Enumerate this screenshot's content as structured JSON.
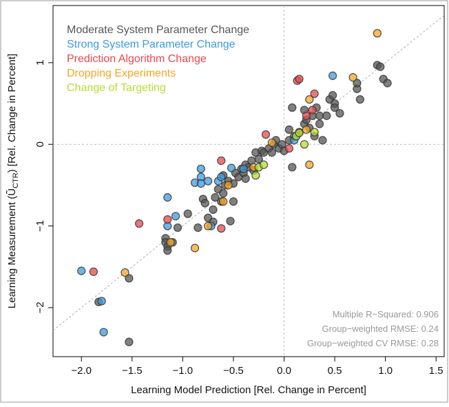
{
  "chart_data": {
    "type": "scatter",
    "x_label": "Learning Model Prediction  [Rel. Change in Percent]",
    "y_label": [
      "Learning Measurement  (Ũ",
      "CTR",
      ")  [Rel. Change in Percent]"
    ],
    "xlim": [
      -2.28,
      1.58
    ],
    "ylim": [
      -2.6,
      1.7
    ],
    "xticks": [
      {
        "value": -2.0,
        "label": "−2.0"
      },
      {
        "value": -1.5,
        "label": "−1.5"
      },
      {
        "value": -1.0,
        "label": "−1.0"
      },
      {
        "value": -0.5,
        "label": "−0.5"
      },
      {
        "value": 0,
        "label": "0.0"
      },
      {
        "value": 0.5,
        "label": "0.5"
      },
      {
        "value": 1.0,
        "label": "1.0"
      },
      {
        "value": 1.5,
        "label": "1.5"
      }
    ],
    "yticks": [
      {
        "value": -2,
        "label": "−2"
      },
      {
        "value": -1,
        "label": "−1"
      },
      0,
      1
    ],
    "legend": "top-left",
    "annotations": [
      "Multiple R−Squared: 0.906",
      "Group−weighted RMSE: 0.24",
      "Group−weighted CV RMSE: 0.28"
    ],
    "series": [
      {
        "name": "Moderate System Parameter Change",
        "color": "#555555",
        "x": [
          -1.83,
          -1.53,
          -1.53,
          -1.17,
          -1.17,
          -1.15,
          -1.15,
          -1.1,
          -1.05,
          -0.95,
          -0.8,
          -0.78,
          -0.75,
          -0.7,
          -0.68,
          -0.65,
          -0.62,
          -0.6,
          -0.58,
          -0.55,
          -0.53,
          -0.5,
          -0.5,
          -0.48,
          -0.45,
          -0.42,
          -0.4,
          -0.38,
          -0.35,
          -0.32,
          -0.3,
          -0.28,
          -0.25,
          -0.22,
          -0.2,
          -0.15,
          -0.12,
          -0.1,
          -0.08,
          -0.05,
          -0.02,
          0.0,
          0.05,
          0.08,
          0.1,
          0.15,
          0.2,
          0.2,
          0.22,
          0.25,
          0.28,
          0.3,
          0.32,
          0.35,
          0.35,
          0.38,
          0.42,
          0.45,
          0.48,
          0.5,
          0.5,
          0.55,
          0.72,
          0.72,
          0.75,
          0.92,
          0.95,
          0.98,
          1.02,
          -0.85,
          -0.7,
          -0.6,
          -0.38,
          0.08,
          0.05
        ],
        "y": [
          -1.93,
          -1.64,
          -2.42,
          -1.15,
          -1.2,
          -1.25,
          -1.3,
          -1.2,
          -1.02,
          -0.85,
          -0.67,
          -0.72,
          -0.9,
          -0.8,
          -0.65,
          -0.55,
          -0.7,
          -0.6,
          -0.5,
          -0.45,
          -0.94,
          -0.7,
          -0.48,
          -0.35,
          -0.4,
          -0.3,
          -0.35,
          -0.25,
          -0.28,
          -0.2,
          -0.32,
          -0.1,
          -0.18,
          -0.08,
          -0.1,
          -0.05,
          -0.1,
          0.0,
          0.05,
          -0.05,
          0.0,
          -0.08,
          0.05,
          0.45,
          0.1,
          0.15,
          0.25,
          0.42,
          0.3,
          0.2,
          0.35,
          0.1,
          0.45,
          0.25,
          0.35,
          0.05,
          0.35,
          0.55,
          0.6,
          0.5,
          0.45,
          0.38,
          0.68,
          0.75,
          0.55,
          0.97,
          0.95,
          0.8,
          0.75,
          -1.02,
          -0.95,
          -0.38,
          -0.42,
          -0.28,
          0.18
        ]
      },
      {
        "name": "Strong System Parameter Change",
        "color": "#3d9be0",
        "x": [
          -2.0,
          -1.8,
          -1.78,
          -1.15,
          -1.15,
          -1.07,
          -0.88,
          -0.82,
          -0.82,
          -0.82,
          -0.75,
          -0.72,
          -0.65,
          -0.62,
          -0.52,
          -0.4,
          0.48,
          0.1,
          0.12
        ],
        "y": [
          -1.55,
          -1.92,
          -2.3,
          -0.65,
          -1.0,
          -0.88,
          -0.47,
          -0.3,
          -0.4,
          -0.48,
          -0.45,
          -1.0,
          -0.45,
          -0.4,
          -0.29,
          -0.3,
          0.84,
          0.05,
          0.1
        ]
      },
      {
        "name": "Prediction Algorithm Change",
        "color": "#e8474f",
        "x": [
          -1.88,
          -1.43,
          -1.15,
          -0.62,
          -0.62,
          -0.18,
          0.13,
          0.15,
          0.3,
          0.28,
          0.22,
          0.05
        ],
        "y": [
          -1.56,
          -0.97,
          -0.92,
          -1.03,
          -0.2,
          0.12,
          0.78,
          0.8,
          0.62,
          0.42,
          0.35,
          -0.05
        ]
      },
      {
        "name": "Dropping Experiments",
        "color": "#f5a623",
        "x": [
          -1.57,
          -1.12,
          -0.88,
          -0.75,
          -0.6,
          -0.55,
          -0.3,
          0.25,
          0.25,
          0.68,
          0.92,
          0.22,
          -0.12
        ],
        "y": [
          -1.57,
          -1.2,
          -1.27,
          -1.0,
          -0.7,
          -0.5,
          -0.28,
          0.55,
          -0.25,
          0.82,
          1.36,
          0.18,
          0.02
        ]
      },
      {
        "name": "Change of Targeting",
        "color": "#b7dc32",
        "x": [
          -0.28,
          -0.25,
          -0.2,
          0.12,
          0.15,
          0.2,
          0.3
        ],
        "y": [
          -0.38,
          -0.28,
          -0.25,
          0.1,
          0.14,
          0.0,
          0.15
        ]
      }
    ]
  }
}
